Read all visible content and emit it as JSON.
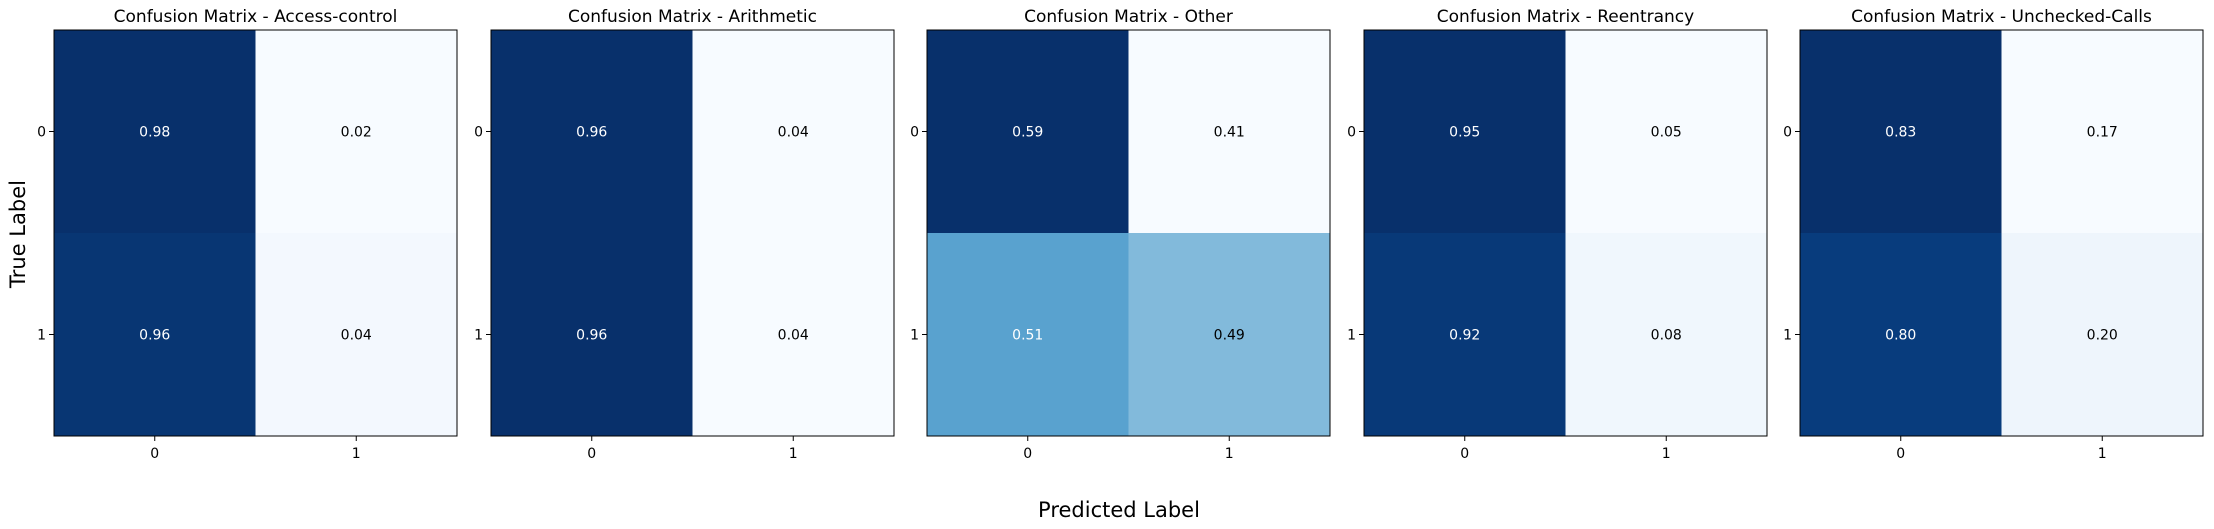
{
  "figure": {
    "ylabel": "True Label",
    "xlabel": "Predicted Label"
  },
  "chart_data": [
    {
      "type": "heatmap",
      "title": "Confusion Matrix - Access-control",
      "x_categories": [
        "0",
        "1"
      ],
      "y_categories": [
        "0",
        "1"
      ],
      "values": [
        [
          0.98,
          0.02
        ],
        [
          0.96,
          0.04
        ]
      ],
      "labels": [
        [
          "0.98",
          "0.02"
        ],
        [
          "0.96",
          "0.04"
        ]
      ],
      "colormap": "Blues",
      "colorbar": false
    },
    {
      "type": "heatmap",
      "title": "Confusion Matrix - Arithmetic",
      "x_categories": [
        "0",
        "1"
      ],
      "y_categories": [
        "0",
        "1"
      ],
      "values": [
        [
          0.96,
          0.04
        ],
        [
          0.96,
          0.04
        ]
      ],
      "labels": [
        [
          "0.96",
          "0.04"
        ],
        [
          "0.96",
          "0.04"
        ]
      ],
      "colormap": "Blues",
      "colorbar": false
    },
    {
      "type": "heatmap",
      "title": "Confusion Matrix - Other",
      "x_categories": [
        "0",
        "1"
      ],
      "y_categories": [
        "0",
        "1"
      ],
      "values": [
        [
          0.59,
          0.41
        ],
        [
          0.51,
          0.49
        ]
      ],
      "labels": [
        [
          "0.59",
          "0.41"
        ],
        [
          "0.51",
          "0.49"
        ]
      ],
      "colormap": "Blues",
      "colorbar": false
    },
    {
      "type": "heatmap",
      "title": "Confusion Matrix - Reentrancy",
      "x_categories": [
        "0",
        "1"
      ],
      "y_categories": [
        "0",
        "1"
      ],
      "values": [
        [
          0.95,
          0.05
        ],
        [
          0.92,
          0.08
        ]
      ],
      "labels": [
        [
          "0.95",
          "0.05"
        ],
        [
          "0.92",
          "0.08"
        ]
      ],
      "colormap": "Blues",
      "colorbar": false
    },
    {
      "type": "heatmap",
      "title": "Confusion Matrix - Unchecked-Calls",
      "x_categories": [
        "0",
        "1"
      ],
      "y_categories": [
        "0",
        "1"
      ],
      "values": [
        [
          0.83,
          0.17
        ],
        [
          0.8,
          0.2
        ]
      ],
      "labels": [
        [
          "0.83",
          "0.17"
        ],
        [
          "0.80",
          "0.20"
        ]
      ],
      "colormap": "Blues",
      "colorbar": false
    }
  ]
}
